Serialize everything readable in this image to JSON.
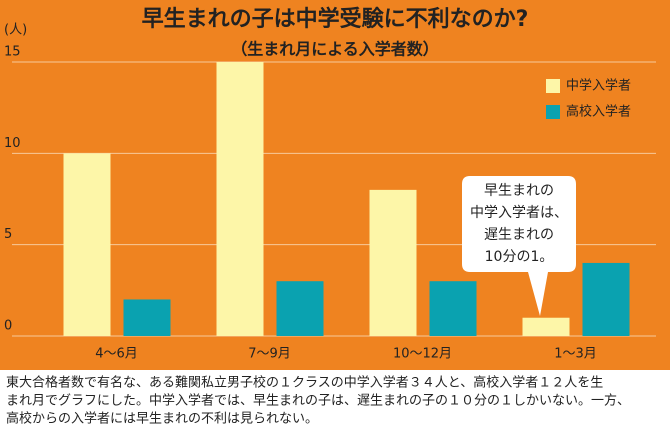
{
  "chart_data": {
    "type": "bar",
    "title": "早生まれの子は中学受験に不利なのか?",
    "subtitle": "（生まれ月による入学者数）",
    "y_label": "(人)",
    "categories": [
      "4～6月",
      "7～9月",
      "10～12月",
      "1～3月"
    ],
    "series": [
      {
        "name": "中学入学者",
        "color": "#fdf6a8",
        "values": [
          10,
          15,
          8,
          1
        ]
      },
      {
        "name": "高校入学者",
        "color": "#0aa2b0",
        "values": [
          2,
          3,
          3,
          4
        ]
      }
    ],
    "ylim": [
      0,
      15
    ],
    "yticks": [
      0,
      5,
      10,
      15
    ],
    "grid": true,
    "legend": "upper right",
    "annotation": [
      "早生まれの",
      "中学入学者は、",
      "遅生まれの",
      "10分の1。"
    ],
    "caption": [
      "東大合格者数で有名な、ある難関私立男子校の１クラスの中学入学者３４人と、高校入学者１２人を生",
      "まれ月でグラフにした。中学入学者では、早生まれの子は、遅生まれの子の１０分の１しかいない。一方、",
      "高校からの入学者には早生まれの不利は見られない。"
    ]
  }
}
